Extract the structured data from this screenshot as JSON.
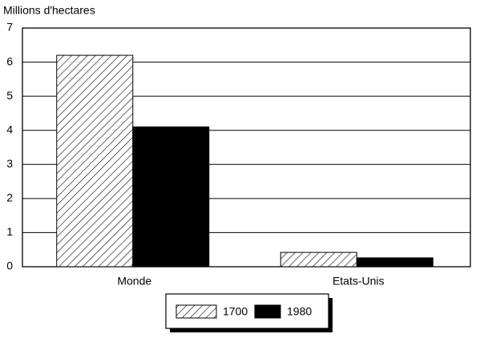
{
  "chart_data": {
    "type": "bar",
    "y_label": "Millions d'hectares",
    "categories": [
      "Monde",
      "Etats-Unis"
    ],
    "series": [
      {
        "name": "1700",
        "color": "#000000",
        "pattern": "hatch",
        "values": [
          6.2,
          0.42
        ]
      },
      {
        "name": "1980",
        "color": "#000000",
        "pattern": "solid",
        "values": [
          4.1,
          0.26
        ]
      }
    ],
    "ylim": [
      0,
      7
    ],
    "yticks": [
      0,
      1,
      2,
      3,
      4,
      5,
      6,
      7
    ],
    "grid": true
  }
}
